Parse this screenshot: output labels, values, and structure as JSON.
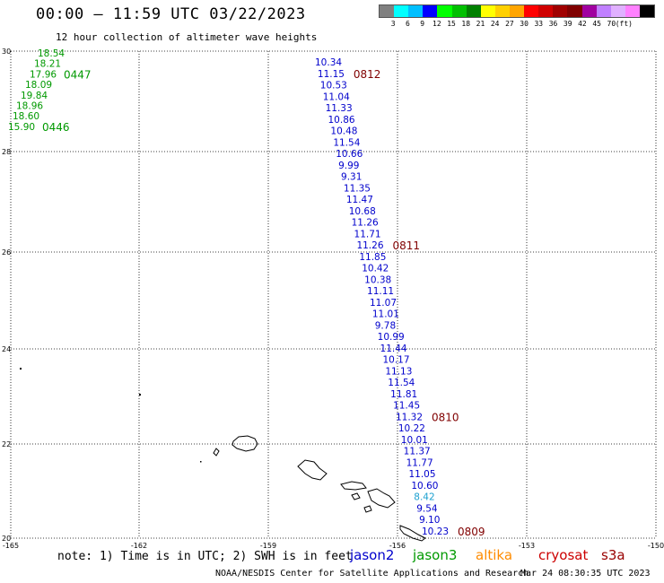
{
  "title": "00:00 – 11:59 UTC 03/22/2023",
  "subtitle": "12 hour collection of altimeter wave heights",
  "scale": {
    "colors": [
      "#808080",
      "#00ffff",
      "#00bfff",
      "#0000ff",
      "#00ff00",
      "#00c000",
      "#008000",
      "#ffff00",
      "#ffd000",
      "#ffa500",
      "#ff0000",
      "#d00000",
      "#a00000",
      "#800000",
      "#a000a0",
      "#c080ff",
      "#e0b0ff",
      "#ff80ff",
      "#000000"
    ],
    "labels": [
      "3",
      "6",
      "9",
      "12",
      "15",
      "18",
      "21",
      "24",
      "27",
      "30",
      "33",
      "36",
      "39",
      "42",
      "45",
      "70"
    ],
    "unit": "(ft)"
  },
  "axes": {
    "lat_labels": [
      "30",
      "28",
      "26",
      "24",
      "22",
      "20"
    ],
    "lon_labels": [
      "-165",
      "-162",
      "-159",
      "-156",
      "-153",
      "-150"
    ]
  },
  "colors": {
    "jason2": "#0000cc",
    "jason3": "#009900",
    "altika": "#ff8c00",
    "cryosat": "#cc0000",
    "s3a": "#990000",
    "time_label": "#800000",
    "highlight": "#1ca0d0"
  },
  "tracks": {
    "green": {
      "values": [
        "18.54",
        "18.21",
        "17.96",
        "18.09",
        "19.84",
        "18.96",
        "18.60",
        "15.90"
      ],
      "time_labels": [
        {
          "text": "0447",
          "after_index": 2
        },
        {
          "text": "0446",
          "after_index": 7
        }
      ]
    },
    "blue": {
      "values": [
        "10.34",
        "11.15",
        "10.53",
        "11.04",
        "11.33",
        "10.86",
        "10.48",
        "11.54",
        "10.66",
        "9.99",
        "9.31",
        "11.35",
        "11.47",
        "10.68",
        "11.26",
        "11.71",
        "11.26",
        "11.85",
        "10.42",
        "10.38",
        "11.11",
        "11.07",
        "11.01",
        "9.78",
        "10.99",
        "11.44",
        "10.17",
        "11.13",
        "11.54",
        "11.81",
        "11.45",
        "11.32",
        "10.22",
        "10.01",
        "11.37",
        "11.77",
        "11.05",
        "10.60",
        "8.42",
        "9.54",
        "9.10",
        "10.23"
      ],
      "time_labels": [
        {
          "text": "0812",
          "after_index": 1
        },
        {
          "text": "0811",
          "after_index": 16
        },
        {
          "text": "0810",
          "after_index": 31
        },
        {
          "text": "0809",
          "after_index": 41
        }
      ]
    }
  },
  "footer": {
    "note": "note: 1) Time is in UTC; 2) SWH is in feet",
    "satellites": [
      {
        "name": "jason2",
        "color": "#0000cc"
      },
      {
        "name": "jason3",
        "color": "#009900"
      },
      {
        "name": "altika",
        "color": "#ff8c00"
      },
      {
        "name": "cryosat",
        "color": "#cc0000"
      },
      {
        "name": "s3a",
        "color": "#990000"
      }
    ],
    "credit": "NOAA/NESDIS Center for Satellite Applications and Research",
    "timestamp": "Mar 24 08:30:35 UTC 2023"
  }
}
